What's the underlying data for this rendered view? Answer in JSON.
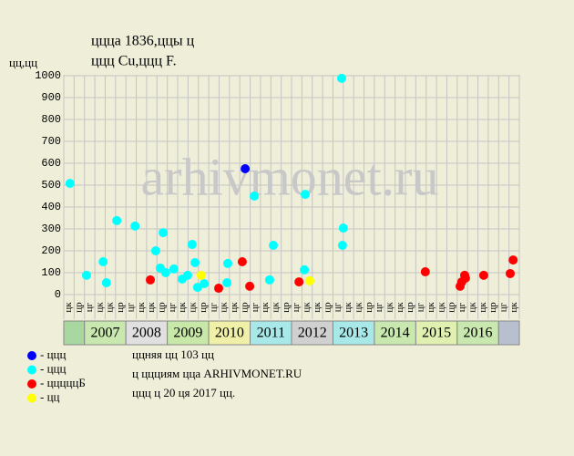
{
  "chart_data": {
    "type": "scatter",
    "title": "ццца 1836,ццы ц",
    "subtitle": "ццц Cu,ццц F.",
    "y_label": "цц,цц",
    "watermark": "arhivmonet.ru",
    "ylim": [
      0,
      1000
    ],
    "yticks": [
      0,
      100,
      200,
      300,
      400,
      500,
      600,
      700,
      800,
      900,
      1000
    ],
    "grid": true,
    "xlim": [
      2006.5,
      2017.5
    ],
    "column_labels": [
      "цк",
      "цр",
      "цг",
      "цк",
      "цк",
      "цр",
      "цг",
      "цк",
      "цк",
      "цр",
      "цг",
      "цк",
      "цк",
      "цр",
      "цг",
      "цк",
      "цк",
      "цр",
      "цг",
      "цк",
      "цк",
      "цр",
      "цг",
      "цк",
      "цк",
      "цр",
      "цг",
      "цк",
      "цк",
      "цр",
      "цг",
      "цк",
      "цк",
      "цр",
      "цг",
      "цк",
      "цк",
      "цр",
      "цг",
      "цк",
      "цк",
      "цр",
      "цг",
      "цк"
    ],
    "band_labels": [
      null,
      "2007",
      "2008",
      "2009",
      "2010",
      "2011",
      "2012",
      "2013",
      "2014",
      "2015",
      "2016",
      null
    ],
    "band_colors": [
      "#a8d8a0",
      "#c8e8b0",
      "#e0e0e0",
      "#c8e8a8",
      "#f0f0a8",
      "#a8e8e8",
      "#d0d0d0",
      "#a8e8e8",
      "#c8e8b0",
      "#e0f0b0",
      "#c8e8b0",
      "#b8c0d0"
    ],
    "series": [
      {
        "name": "- ццц",
        "color": "#0000ff",
        "x": [
          2010.88
        ],
        "values": [
          575
        ]
      },
      {
        "name": "- ццц",
        "color": "#00ffff",
        "x": [
          2006.65,
          2007.05,
          2007.45,
          2007.53,
          2007.78,
          2008.22,
          2008.72,
          2008.83,
          2008.9,
          2008.96,
          2009.16,
          2009.36,
          2009.49,
          2009.6,
          2009.67,
          2009.73,
          2009.89,
          2010.44,
          2010.46,
          2011.1,
          2011.47,
          2011.56,
          2012.33,
          2012.31,
          2013.21,
          2013.25,
          2013.23
        ],
        "values": [
          508,
          88,
          150,
          54,
          338,
          313,
          200,
          121,
          283,
          100,
          117,
          71,
          88,
          229,
          146,
          33,
          50,
          54,
          142,
          450,
          67,
          225,
          458,
          113,
          988,
          304,
          225
        ]
      },
      {
        "name": "- цццццБ",
        "color": "#ff0000",
        "x": [
          2008.59,
          2010.24,
          2010.81,
          2010.99,
          2012.18,
          2015.23,
          2016.07,
          2016.11,
          2016.18,
          2016.2,
          2016.64,
          2017.28,
          2017.35
        ],
        "values": [
          67,
          29,
          150,
          38,
          58,
          104,
          38,
          58,
          88,
          75,
          88,
          96,
          158
        ]
      },
      {
        "name": "- цц",
        "color": "#ffff00",
        "x": [
          2009.82,
          2012.44
        ],
        "values": [
          88,
          63
        ]
      }
    ],
    "footer": [
      "ццняя цц 103 цц",
      "ц ццциям цца ARHIVMONET.RU",
      "ццц ц 20 ця 2017 цц."
    ]
  }
}
